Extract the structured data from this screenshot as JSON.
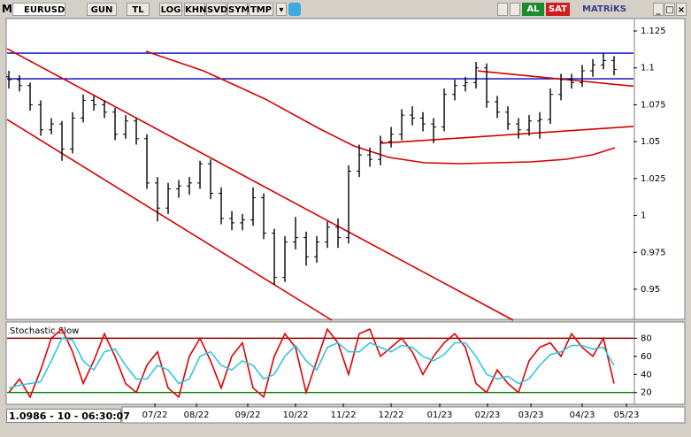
{
  "toolbar": {
    "logo": "M",
    "symbol": "EURUSD",
    "buttons": [
      "GUN",
      "TL",
      "LOG",
      "KHN",
      "SVD",
      "SYM",
      "TMP"
    ],
    "buy": "AL",
    "sell": "SAT",
    "brand": "MATRiKS"
  },
  "status": "1.0986 - 10 - 06:30:07",
  "chart_data": [
    {
      "type": "ohlc",
      "color": "#000000",
      "x": [
        0,
        1,
        2,
        3,
        4,
        5,
        6,
        7,
        8,
        9,
        10,
        11,
        12,
        13,
        14,
        15,
        16,
        17,
        18,
        19,
        20,
        21,
        22,
        23,
        24,
        25,
        26,
        27,
        28,
        29,
        30,
        31,
        32,
        33,
        34,
        35,
        36,
        37,
        38,
        39,
        40,
        41,
        42,
        43,
        44,
        45,
        46,
        47,
        48,
        49,
        50,
        51,
        52,
        53,
        54,
        55,
        56,
        57
      ],
      "open": [
        1.094,
        1.092,
        1.088,
        1.075,
        1.058,
        1.062,
        1.045,
        1.066,
        1.078,
        1.075,
        1.07,
        1.055,
        1.064,
        1.052,
        1.022,
        1.005,
        1.018,
        1.02,
        1.022,
        1.035,
        1.015,
        0.998,
        0.995,
        0.997,
        1.012,
        0.988,
        0.958,
        0.982,
        0.985,
        0.972,
        0.982,
        0.992,
        0.985,
        1.03,
        1.041,
        1.038,
        1.05,
        1.055,
        1.068,
        1.066,
        1.062,
        1.06,
        1.082,
        1.088,
        1.09,
        1.1,
        1.077,
        1.07,
        1.062,
        1.058,
        1.064,
        1.065,
        1.082,
        1.092,
        1.09,
        1.098,
        1.102,
        1.105
      ],
      "high": [
        1.098,
        1.095,
        1.09,
        1.078,
        1.066,
        1.064,
        1.07,
        1.082,
        1.081,
        1.078,
        1.073,
        1.068,
        1.066,
        1.055,
        1.026,
        1.022,
        1.024,
        1.026,
        1.037,
        1.038,
        1.019,
        1.003,
        1.001,
        1.019,
        1.015,
        0.991,
        0.986,
        0.999,
        0.989,
        0.986,
        0.996,
        0.998,
        1.034,
        1.048,
        1.046,
        1.054,
        1.06,
        1.072,
        1.074,
        1.07,
        1.066,
        1.086,
        1.092,
        1.094,
        1.104,
        1.103,
        1.081,
        1.074,
        1.066,
        1.068,
        1.07,
        1.086,
        1.096,
        1.096,
        1.102,
        1.106,
        1.11,
        1.108
      ],
      "low": [
        1.086,
        1.084,
        1.071,
        1.054,
        1.055,
        1.037,
        1.042,
        1.063,
        1.071,
        1.066,
        1.051,
        1.052,
        1.048,
        1.018,
        0.996,
        1.001,
        1.012,
        1.014,
        1.018,
        1.011,
        0.994,
        0.99,
        0.99,
        0.993,
        0.984,
        0.953,
        0.955,
        0.977,
        0.966,
        0.968,
        0.978,
        0.978,
        0.981,
        1.026,
        1.033,
        1.034,
        1.046,
        1.051,
        1.061,
        1.057,
        1.049,
        1.057,
        1.078,
        1.084,
        1.086,
        1.073,
        1.066,
        1.058,
        1.052,
        1.054,
        1.052,
        1.062,
        1.078,
        1.086,
        1.087,
        1.094,
        1.099,
        1.095
      ],
      "close": [
        1.092,
        1.088,
        1.075,
        1.058,
        1.062,
        1.045,
        1.066,
        1.078,
        1.075,
        1.07,
        1.055,
        1.064,
        1.052,
        1.022,
        1.005,
        1.018,
        1.02,
        1.022,
        1.035,
        1.015,
        0.998,
        0.995,
        0.997,
        1.012,
        0.988,
        0.958,
        0.982,
        0.985,
        0.972,
        0.982,
        0.992,
        0.985,
        1.03,
        1.041,
        1.038,
        1.05,
        1.055,
        1.068,
        1.066,
        1.062,
        1.06,
        1.082,
        1.088,
        1.09,
        1.1,
        1.077,
        1.07,
        1.062,
        1.058,
        1.064,
        1.065,
        1.082,
        1.092,
        1.09,
        1.098,
        1.102,
        1.105,
        1.099
      ],
      "xlim": [
        -0.17,
        58.83
      ],
      "ylim": [
        0.9302,
        1.1328
      ],
      "yticks": [
        1.125,
        1.1,
        1.075,
        1.05,
        1.025,
        1,
        0.975,
        0.95
      ],
      "hlines": [
        {
          "value": 1.11,
          "color": "#0000c0"
        },
        {
          "value": 1.0926,
          "color": "#0000c0"
        }
      ],
      "trendlines": [
        {
          "color": "#d40000",
          "x": [
            -0.17,
            47.5
          ],
          "y": [
            1.113,
            0.929
          ]
        },
        {
          "color": "#d40000",
          "x": [
            -0.17,
            30.42
          ],
          "y": [
            1.065,
            0.929
          ]
        },
        {
          "color": "#d40000",
          "x": [
            44.17,
            58.83
          ],
          "y": [
            1.0979,
            1.0876
          ]
        },
        {
          "color": "#d40000",
          "x": [
            35,
            58.83
          ],
          "y": [
            1.0489,
            1.0603
          ]
        }
      ],
      "overlays": [
        {
          "color": "#d40000",
          "x": [
            12.92,
            18.33,
            24.17,
            29.17,
            32.5,
            35.83,
            39.17,
            42.5,
            45.83,
            49.17,
            52.5,
            55,
            57.08
          ],
          "y": [
            1.1112,
            1.098,
            1.0788,
            1.0591,
            1.0471,
            1.0393,
            1.0357,
            1.0351,
            1.0357,
            1.0363,
            1.0381,
            1.0411,
            1.0459
          ]
        }
      ]
    },
    {
      "type": "line",
      "title": "Stochastic,Slow",
      "x": [
        0,
        1,
        2,
        3,
        4,
        5,
        6,
        7,
        8,
        9,
        10,
        11,
        12,
        13,
        14,
        15,
        16,
        17,
        18,
        19,
        20,
        21,
        22,
        23,
        24,
        25,
        26,
        27,
        28,
        29,
        30,
        31,
        32,
        33,
        34,
        35,
        36,
        37,
        38,
        39,
        40,
        41,
        42,
        43,
        44,
        45,
        46,
        47,
        48,
        49,
        50,
        51,
        52,
        53,
        54,
        55,
        56,
        57
      ],
      "series": [
        {
          "color": "#e00000",
          "values": [
            20,
            35,
            15,
            45,
            80,
            90,
            65,
            30,
            55,
            85,
            60,
            30,
            20,
            50,
            65,
            25,
            15,
            60,
            80,
            55,
            25,
            60,
            75,
            25,
            15,
            60,
            85,
            70,
            20,
            55,
            90,
            75,
            40,
            85,
            90,
            60,
            70,
            80,
            65,
            40,
            60,
            75,
            85,
            70,
            30,
            20,
            45,
            30,
            20,
            55,
            70,
            75,
            60,
            85,
            70,
            60,
            80,
            30
          ]
        },
        {
          "color": "#30c8dc",
          "values": [
            25,
            28,
            30,
            32,
            55,
            80,
            78,
            55,
            45,
            65,
            68,
            50,
            35,
            35,
            50,
            45,
            30,
            35,
            60,
            65,
            50,
            45,
            55,
            50,
            35,
            40,
            60,
            72,
            55,
            45,
            70,
            75,
            65,
            65,
            75,
            70,
            65,
            72,
            70,
            60,
            55,
            62,
            75,
            75,
            60,
            40,
            35,
            38,
            30,
            35,
            50,
            62,
            65,
            72,
            72,
            68,
            70,
            50
          ]
        }
      ],
      "xlim": [
        -0.17,
        58.83
      ],
      "ylim": [
        8,
        96
      ],
      "yticks": [
        80,
        60,
        40,
        20
      ],
      "hlines": [
        {
          "value": 80,
          "color": "#8b0000"
        },
        {
          "value": 20,
          "color": "#008000"
        }
      ],
      "xticks": [
        {
          "value": 13.75,
          "label": "07/22"
        },
        {
          "value": 17.67,
          "label": "08/22"
        },
        {
          "value": 22.5,
          "label": "09/22"
        },
        {
          "value": 27,
          "label": "10/22"
        },
        {
          "value": 31.5,
          "label": "11/22"
        },
        {
          "value": 36,
          "label": "12/22"
        },
        {
          "value": 40.58,
          "label": "01/23"
        },
        {
          "value": 45.08,
          "label": "02/23"
        },
        {
          "value": 49.17,
          "label": "03/23"
        },
        {
          "value": 54,
          "label": "04/23"
        },
        {
          "value": 58.17,
          "label": "05/23"
        }
      ]
    }
  ]
}
